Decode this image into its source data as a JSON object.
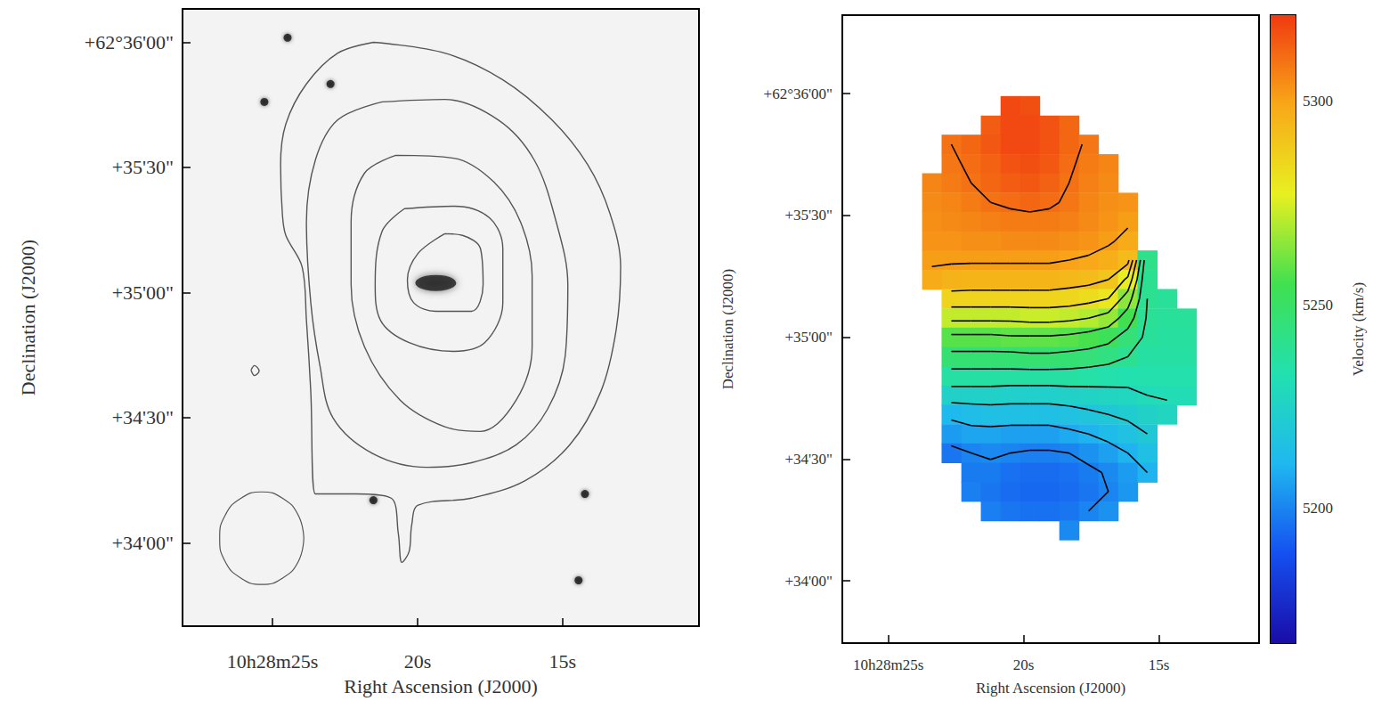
{
  "chart_data": [
    {
      "type": "contour",
      "x_label": "Right Ascension (J2000)",
      "y_label": "Declination (J2000)",
      "xlim": [
        28.1,
        10.3
      ],
      "ylim": [
        2020,
        2168
      ],
      "xticks": [
        {
          "value": 25,
          "label": "10h28m25s"
        },
        {
          "value": 20,
          "label": "20s"
        },
        {
          "value": 15,
          "label": "15s"
        }
      ],
      "yticks": [
        {
          "value": 2160,
          "label": "+62°36'00\""
        },
        {
          "value": 2130,
          "label": "+35'30\""
        },
        {
          "value": 2100,
          "label": "+35'00\""
        },
        {
          "value": 2070,
          "label": "+34'30\""
        },
        {
          "value": 2040,
          "label": "+34'00\""
        }
      ],
      "color": "#555555",
      "contours": [
        {
          "x": [
            21.52,
            22.75,
            23.83,
            24.54,
            24.72,
            24.66,
            24.54,
            23.98,
            23.83,
            23.68,
            23.52,
            22.14,
            20.91,
            20.66,
            20.54,
            20.29,
            20.2,
            19.98,
            18.14,
            16.29,
            14.75,
            13.68,
            13.15,
            13.0,
            13.37,
            14.14,
            15.37,
            17.06,
            19.06,
            21.52
          ],
          "y": [
            2160.0,
            2157.4,
            2150.0,
            2140.4,
            2130.7,
            2119.0,
            2113.7,
            2106.2,
            2093.4,
            2076.3,
            2051.7,
            2051.7,
            2050.7,
            2042.1,
            2035.3,
            2037.9,
            2044.3,
            2049.0,
            2050.7,
            2054.9,
            2063.5,
            2076.3,
            2091.2,
            2106.2,
            2119.0,
            2130.7,
            2141.4,
            2151.0,
            2157.4,
            2160.0
          ]
        },
        {
          "x": [
            21.22,
            22.75,
            23.52,
            23.83,
            23.68,
            23.37,
            22.91,
            21.52,
            19.68,
            18.14,
            16.6,
            15.52,
            14.91,
            14.82,
            15.22,
            15.98,
            17.22,
            19.06,
            21.22
          ],
          "y": [
            2145.7,
            2141.4,
            2131.8,
            2116.9,
            2097.6,
            2082.7,
            2069.9,
            2061.3,
            2058.1,
            2059.2,
            2063.5,
            2072.0,
            2084.8,
            2101.9,
            2116.9,
            2131.8,
            2141.4,
            2146.3,
            2145.7
          ]
        },
        {
          "x": [
            20.75,
            21.83,
            22.29,
            22.29,
            21.83,
            20.6,
            19.06,
            17.83,
            16.6,
            16.05,
            16.05,
            16.45,
            17.37,
            18.75,
            20.75
          ],
          "y": [
            2132.9,
            2128.6,
            2116.9,
            2101.9,
            2087.0,
            2074.2,
            2067.8,
            2066.7,
            2074.2,
            2087.0,
            2104.1,
            2116.9,
            2126.5,
            2132.2,
            2132.9
          ]
        },
        {
          "x": [
            20.45,
            21.22,
            21.46,
            21.28,
            20.29,
            18.75,
            17.68,
            17.06,
            17.06,
            17.52,
            18.75,
            20.45
          ],
          "y": [
            2120.1,
            2114.7,
            2101.9,
            2093.4,
            2088.0,
            2085.9,
            2088.0,
            2097.6,
            2110.5,
            2117.9,
            2120.7,
            2120.1
          ]
        },
        {
          "x": [
            19.06,
            19.98,
            20.35,
            20.14,
            19.37,
            18.14,
            17.74,
            17.83,
            18.45,
            19.06
          ],
          "y": [
            2114.1,
            2109.4,
            2103.0,
            2097.6,
            2095.5,
            2095.5,
            2101.9,
            2110.5,
            2113.7,
            2114.1
          ]
        },
        {
          "x": [
            25.74,
            25.62,
            25.46,
            25.62,
            25.74
          ],
          "y": [
            2081.4,
            2082.5,
            2081.2,
            2080.1,
            2081.4
          ]
        }
      ],
      "beam": {
        "x": [
          23.92,
          24.11,
          24.66,
          25.37,
          26.08,
          26.63,
          26.82,
          26.63,
          26.08,
          25.37,
          24.66,
          24.11,
          23.92
        ],
        "y": [
          2041.1,
          2035.5,
          2031.5,
          2030.0,
          2031.5,
          2035.5,
          2041.1,
          2046.6,
          2050.7,
          2052.2,
          2050.7,
          2046.6,
          2041.1
        ]
      },
      "stars": {
        "x": [
          25.28,
          23.0,
          24.48,
          14.45,
          21.52,
          14.23
        ],
        "y": [
          2145.7,
          2150.0,
          2161.1,
          2031.0,
          2050.2,
          2051.7
        ]
      },
      "galaxy": {
        "x": [
          19.37
        ],
        "y": [
          2102.3
        ]
      }
    },
    {
      "type": "heatmap",
      "x_label": "Right Ascension (J2000)",
      "y_label": "Declination (J2000)",
      "xlim": [
        26.7,
        11.3
      ],
      "ylim": [
        2024.7,
        2179.3
      ],
      "xticks": [
        {
          "value": 25,
          "label": "10h28m25s"
        },
        {
          "value": 20,
          "label": "20s"
        },
        {
          "value": 15,
          "label": "15s"
        }
      ],
      "yticks": [
        {
          "value": 2160,
          "label": "+62°36'00\""
        },
        {
          "value": 2130,
          "label": "+35'30\""
        },
        {
          "value": 2100,
          "label": "+35'00\""
        },
        {
          "value": 2070,
          "label": "+34'30\""
        },
        {
          "value": 2040,
          "label": "+34'00\""
        }
      ],
      "color": "#000000",
      "x": [
        23.39,
        22.67,
        21.94,
        21.22,
        20.49,
        19.77,
        19.05,
        18.32,
        17.6,
        16.87,
        16.15,
        15.43,
        14.7,
        13.98
      ],
      "y": [
        2157.0,
        2152.2,
        2147.5,
        2142.7,
        2138.0,
        2133.2,
        2128.5,
        2123.7,
        2119.0,
        2114.2,
        2109.5,
        2104.7,
        2100.0,
        2095.2,
        2090.5,
        2085.7,
        2081.0,
        2076.2,
        2071.5,
        2066.7,
        2062.0,
        2057.2,
        2052.5
      ],
      "values": [
        [
          null,
          null,
          null,
          null,
          5318,
          5317,
          null,
          null,
          null,
          null,
          null,
          null,
          null,
          null
        ],
        [
          null,
          null,
          null,
          5314,
          5318,
          5318,
          5316,
          5312,
          null,
          null,
          null,
          null,
          null,
          null
        ],
        [
          null,
          5310,
          5312,
          5315,
          5318,
          5318,
          5316,
          5312,
          5309,
          null,
          null,
          null,
          null,
          null
        ],
        [
          null,
          5309,
          5311,
          5313,
          5316,
          5317,
          5315,
          5311,
          5308,
          5306,
          null,
          null,
          null,
          null
        ],
        [
          5306,
          5308,
          5310,
          5312,
          5314,
          5315,
          5313,
          5310,
          5307,
          5305,
          null,
          null,
          null,
          null
        ],
        [
          5305,
          5306,
          5308,
          5310,
          5311,
          5312,
          5311,
          5309,
          5306,
          5304,
          5303,
          null,
          null,
          null
        ],
        [
          5304,
          5305,
          5306,
          5307,
          5308,
          5308,
          5308,
          5307,
          5305,
          5303,
          5301,
          null,
          null,
          null
        ],
        [
          5303,
          5303,
          5304,
          5304,
          5305,
          5305,
          5305,
          5304,
          5303,
          5301,
          5298,
          null,
          null,
          null
        ],
        [
          5301,
          5301,
          5301,
          5301,
          5301,
          5301,
          5301,
          5300,
          5299,
          5297,
          5293,
          5242,
          null,
          null
        ],
        [
          5298,
          5296,
          5295,
          5295,
          5295,
          5295,
          5295,
          5294,
          5293,
          5290,
          5278,
          5240,
          null,
          null
        ],
        [
          null,
          5286,
          5286,
          5286,
          5286,
          5286,
          5286,
          5285,
          5283,
          5280,
          5265,
          5240,
          5238,
          null
        ],
        [
          null,
          5272,
          5272,
          5272,
          5272,
          5273,
          5273,
          5272,
          5270,
          5266,
          5255,
          5239,
          5238,
          5238
        ],
        [
          null,
          5258,
          5258,
          5258,
          5259,
          5259,
          5259,
          5258,
          5256,
          5253,
          5246,
          5238,
          5237,
          5237
        ],
        [
          null,
          5247,
          5247,
          5247,
          5247,
          5248,
          5248,
          5247,
          5246,
          5244,
          5240,
          5236,
          5236,
          5236
        ],
        [
          null,
          5236,
          5236,
          5236,
          5236,
          5236,
          5236,
          5236,
          5235,
          5234,
          5233,
          5234,
          5234,
          5234
        ],
        [
          null,
          5225,
          5225,
          5225,
          5224,
          5224,
          5224,
          5225,
          5226,
          5227,
          5228,
          5230,
          5231,
          5231
        ],
        [
          null,
          5212,
          5214,
          5215,
          5215,
          5215,
          5215,
          5216,
          5218,
          5220,
          5222,
          5225,
          5227,
          null
        ],
        [
          null,
          5205,
          5207,
          5207,
          5206,
          5206,
          5206,
          5208,
          5210,
          5213,
          5216,
          5220,
          null,
          null
        ],
        [
          null,
          5197,
          5200,
          5201,
          5200,
          5199,
          5199,
          5200,
          5203,
          5206,
          5210,
          5215,
          null,
          null
        ],
        [
          null,
          null,
          5198,
          5198,
          5196,
          5195,
          5195,
          5196,
          5198,
          5201,
          5205,
          5210,
          null,
          null
        ],
        [
          null,
          null,
          5199,
          5197,
          5195,
          5194,
          5194,
          5195,
          5197,
          5200,
          5204,
          null,
          null,
          null
        ],
        [
          null,
          null,
          null,
          5199,
          5197,
          5196,
          5196,
          5197,
          5200,
          5203,
          null,
          null,
          null,
          null
        ],
        [
          null,
          null,
          null,
          null,
          null,
          null,
          null,
          5201,
          null,
          null,
          null,
          null,
          null,
          null
        ]
      ],
      "contour_levels": [
        5200,
        5210,
        5220,
        5230,
        5240,
        5250,
        5260,
        5270,
        5280,
        5290,
        5300,
        5310
      ],
      "colorbar": {
        "label": "Velocity (km/s)",
        "lim": [
          5167,
          5321
        ],
        "ticks": [
          5200,
          5250,
          5300
        ]
      }
    }
  ]
}
